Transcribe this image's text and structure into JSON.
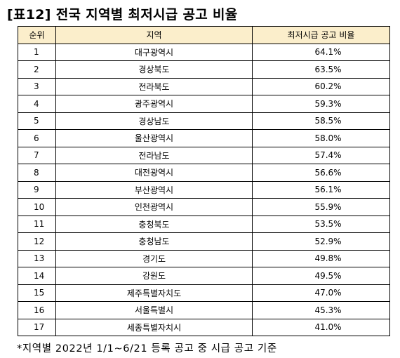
{
  "title": "[표12] 전국 지역별 최저시급 공고 비율",
  "table": {
    "headers": {
      "rank": "순위",
      "region": "지역",
      "ratio": "최저시급 공고 비율"
    },
    "header_bg": "#fbeecb",
    "rows": [
      {
        "rank": "1",
        "region": "대구광역시",
        "ratio": "64.1%"
      },
      {
        "rank": "2",
        "region": "경상북도",
        "ratio": "63.5%"
      },
      {
        "rank": "3",
        "region": "전라북도",
        "ratio": "60.2%"
      },
      {
        "rank": "4",
        "region": "광주광역시",
        "ratio": "59.3%"
      },
      {
        "rank": "5",
        "region": "경상남도",
        "ratio": "58.5%"
      },
      {
        "rank": "6",
        "region": "울산광역시",
        "ratio": "58.0%"
      },
      {
        "rank": "7",
        "region": "전라남도",
        "ratio": "57.4%"
      },
      {
        "rank": "8",
        "region": "대전광역시",
        "ratio": "56.6%"
      },
      {
        "rank": "9",
        "region": "부산광역시",
        "ratio": "56.1%"
      },
      {
        "rank": "10",
        "region": "인천광역시",
        "ratio": "55.9%"
      },
      {
        "rank": "11",
        "region": "충청북도",
        "ratio": "53.5%"
      },
      {
        "rank": "12",
        "region": "충청남도",
        "ratio": "52.9%"
      },
      {
        "rank": "13",
        "region": "경기도",
        "ratio": "49.8%"
      },
      {
        "rank": "14",
        "region": "강원도",
        "ratio": "49.5%"
      },
      {
        "rank": "15",
        "region": "제주특별자치도",
        "ratio": "47.0%"
      },
      {
        "rank": "16",
        "region": "서울특별시",
        "ratio": "45.3%"
      },
      {
        "rank": "17",
        "region": "세종특별자치시",
        "ratio": "41.0%"
      }
    ]
  },
  "footnote": "*지역별 2022년 1/1~6/21 등록 공고 중 시급 공고 기준"
}
